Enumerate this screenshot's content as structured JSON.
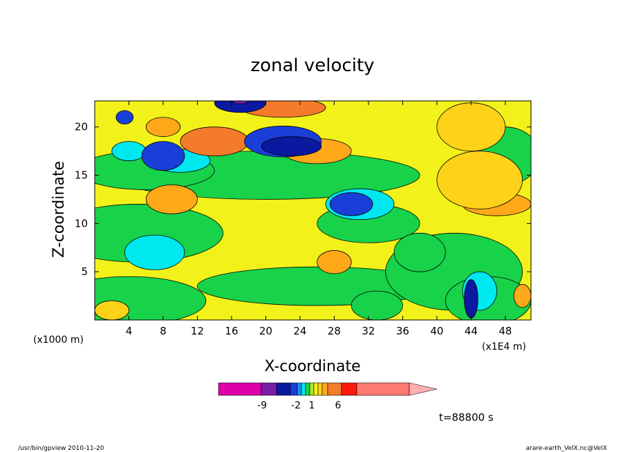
{
  "chart_data": {
    "type": "heatmap",
    "title": "zonal velocity",
    "xlabel": "X-coordinate",
    "ylabel": "Z-coordinate",
    "x_unit_left": "(x1000 m)",
    "x_unit_right": "(x1E4 m)",
    "x_ticks": [
      4,
      8,
      12,
      16,
      20,
      24,
      28,
      32,
      36,
      40,
      44,
      48
    ],
    "y_ticks": [
      5,
      10,
      15,
      20
    ],
    "xlim": [
      0,
      51
    ],
    "ylim": [
      0,
      22.7
    ],
    "grid": false,
    "colorbar": {
      "colors": [
        "#dd00aa",
        "#7a1ea8",
        "#0a1aa0",
        "#1a3fd8",
        "#1f8fef",
        "#00e8ef",
        "#18d24a",
        "#a8e630",
        "#f2f21a",
        "#ffd21a",
        "#ffa81a",
        "#f47b2a",
        "#ff1a10",
        "#ff7a70"
      ],
      "tick_labels": [
        "-9",
        "-2",
        "1",
        "6"
      ],
      "extend_color": "#ffb0b0"
    },
    "field_colors": {
      "strong_neg": "#7a1ea8",
      "neg3": "#0a1aa0",
      "neg2": "#1a3fd8",
      "neg1": "#00e8ef",
      "zero": "#18d24a",
      "pos1": "#f2f21a",
      "pos2": "#ffd21a",
      "pos3": "#ffa81a",
      "pos4": "#f47b2a"
    }
  },
  "time_label": "t=88800 s",
  "footer": {
    "left": "/usr/bin/gpview   2010-11-20",
    "right": "arare-earth_VelX.nc@VelX"
  }
}
